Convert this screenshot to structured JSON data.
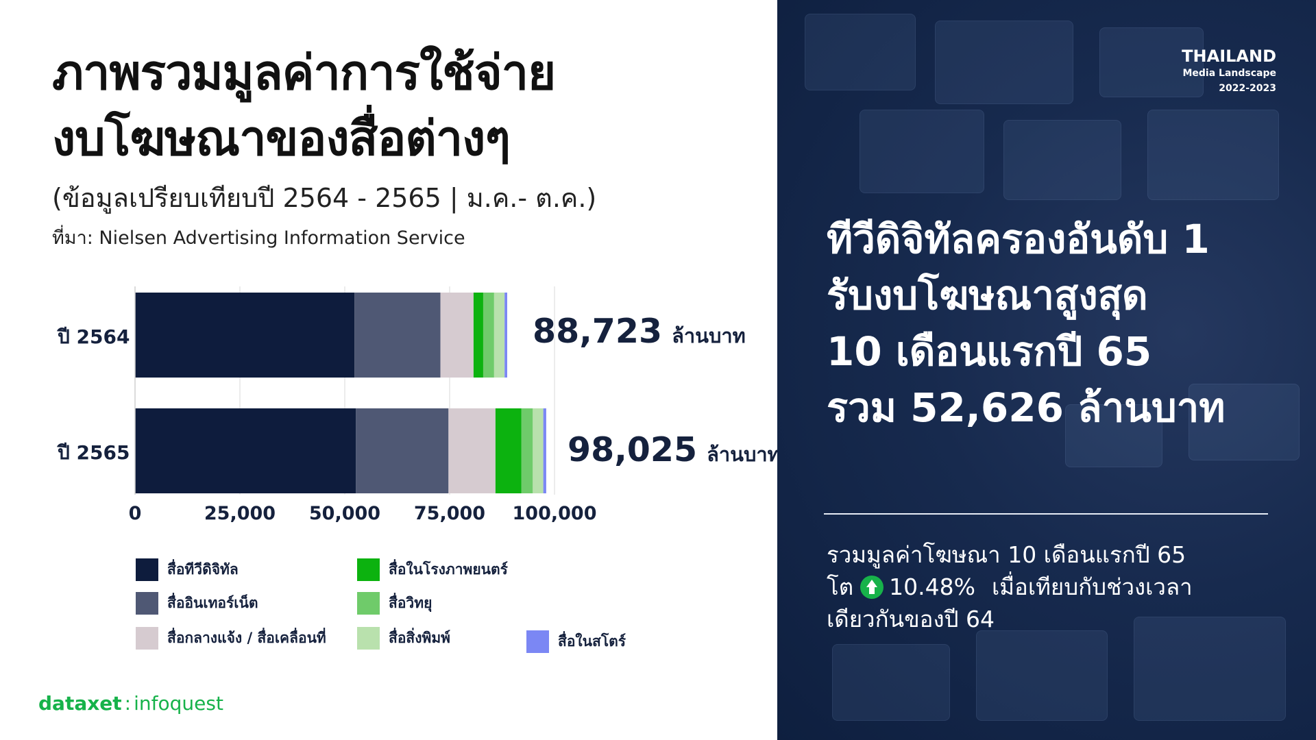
{
  "header": {
    "title_line1": "ภาพรวมมูลค่าการใช้จ่าย",
    "title_line2": "งบโฆษณาของสื่อต่างๆ",
    "subtitle": "(ข้อมูลเปรียบเทียบปี 2564 - 2565 | ม.ค.- ต.ค.)",
    "source": "ที่มา: Nielsen Advertising Information Service"
  },
  "brand": {
    "part1": "dataxet",
    "separator": ":",
    "part2": "infoquest"
  },
  "badge": {
    "line1": "THAILAND",
    "line2": "Media Landscape",
    "line3": "2022-2023"
  },
  "headline": {
    "line1": "ทีวีดิจิทัลครองอันดับ 1",
    "line2": "รับงบโฆษณาสูงสุด",
    "line3": "10 เดือนแรกปี 65",
    "line4": "รวม 52,626 ล้านบาท"
  },
  "note": {
    "line1": "รวมมูลค่าโฆษณา 10 เดือนแรกปี 65",
    "line2_prefix": "โต",
    "line2_value": "10.48%",
    "line2_suffix": "เมื่อเทียบกับช่วงเวลา",
    "line3": "เดียวกันของปี 64",
    "colors": {
      "up_icon": "#17b24a"
    }
  },
  "chart_data": {
    "type": "bar",
    "orientation": "horizontal",
    "stacked": true,
    "categories": [
      "ปี 2564",
      "ปี 2565"
    ],
    "series": [
      {
        "name": "สื่อทีวีดิจิทัล",
        "color": "#0e1c3d",
        "values": [
          52300,
          52626
        ]
      },
      {
        "name": "สื่ออินเทอร์เน็ต",
        "color": "#4f5874",
        "values": [
          20500,
          22100
        ]
      },
      {
        "name": "สื่อกลางแจ้ง / สื่อเคลื่อนที่",
        "color": "#d6cbd0",
        "values": [
          7900,
          11200
        ]
      },
      {
        "name": "สื่อในโรงภาพยนตร์",
        "color": "#0cb20f",
        "values": [
          2300,
          6200
        ]
      },
      {
        "name": "สื่อวิทยุ",
        "color": "#6fcb6a",
        "values": [
          2600,
          2700
        ]
      },
      {
        "name": "สื่อสิ่งพิมพ์",
        "color": "#b9e1ad",
        "values": [
          2500,
          2500
        ]
      },
      {
        "name": "สื่อในสโตร์",
        "color": "#7b87f4",
        "values": [
          623,
          699
        ]
      }
    ],
    "totals": [
      "88,723",
      "98,025"
    ],
    "total_unit": "ล้านบาท",
    "xlim": [
      0,
      100000
    ],
    "xticks": [
      "0",
      "25,000",
      "50,000",
      "75,000",
      "100,000"
    ],
    "grid": true,
    "legend_position": "bottom"
  }
}
